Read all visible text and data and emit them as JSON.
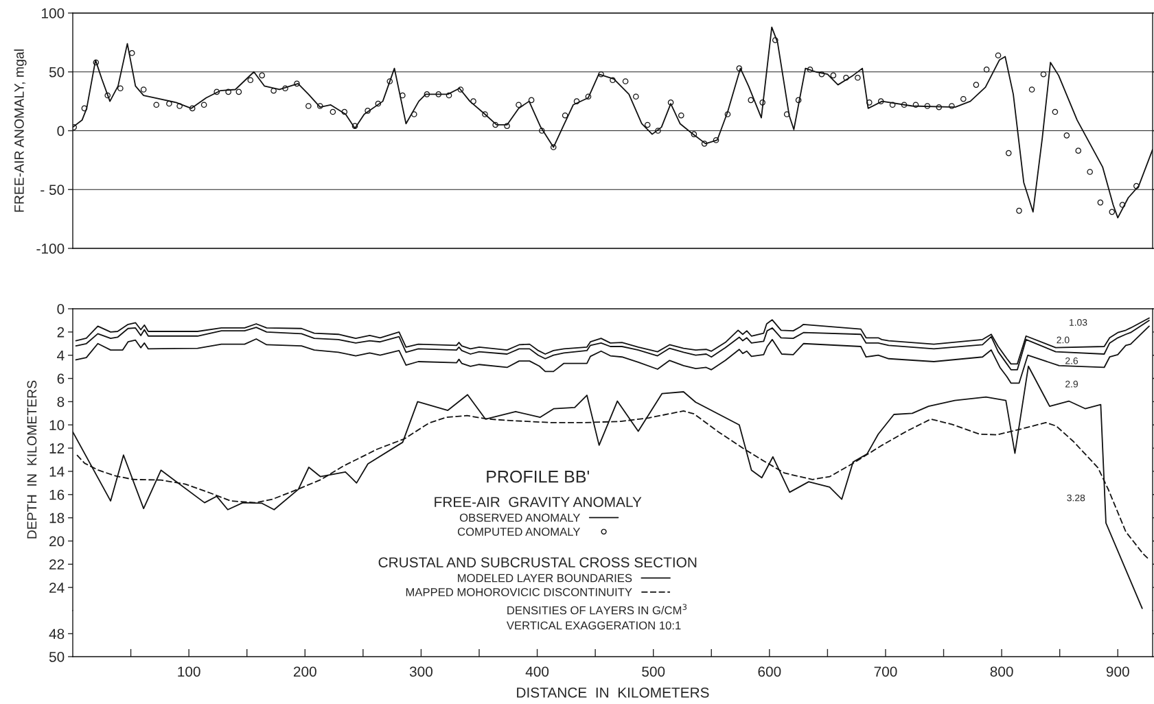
{
  "chart_data": [
    {
      "type": "line",
      "ylabel": "FREE-AIR ANOMALY, mgal",
      "xlim": [
        0,
        930
      ],
      "ylim": [
        -100,
        100
      ],
      "yticks": [
        {
          "value": -100,
          "label": "-100"
        },
        {
          "value": -50,
          "label": "- 50"
        },
        0,
        50,
        100
      ],
      "grid": "y",
      "tick_labels": "y",
      "legend": "bottom",
      "legend_title": "FREE-AIR  GRAVITY ANOMALY",
      "series": [
        {
          "name": "OBSERVED ANOMALY",
          "color": "#111111",
          "x": [
            0,
            8,
            12,
            19.6,
            25,
            32,
            39,
            47,
            54,
            61,
            70,
            89,
            102,
            115,
            127,
            140,
            156,
            165,
            178,
            194,
            203,
            213,
            222,
            235,
            243,
            251,
            267,
            277,
            287,
            298,
            304,
            323,
            333,
            342,
            355,
            365,
            374,
            384,
            393,
            403,
            414,
            422,
            431,
            444,
            453,
            466,
            479,
            490,
            499,
            507,
            515,
            523,
            533,
            545,
            555,
            564,
            575,
            582,
            593,
            602,
            607,
            617,
            621,
            631,
            640,
            650,
            659,
            672,
            680,
            685,
            697,
            723,
            760,
            773,
            786,
            798,
            803,
            810,
            819,
            827,
            835,
            842,
            849,
            865,
            887,
            896,
            900,
            909,
            918,
            930
          ],
          "values": [
            3,
            9,
            19,
            60,
            44,
            25,
            38,
            74,
            38,
            30,
            28,
            24,
            19,
            28,
            34,
            35,
            50,
            38,
            35,
            40,
            31,
            20,
            22,
            14,
            2,
            14,
            25,
            53,
            6,
            25,
            31,
            31,
            36,
            25,
            14,
            5,
            5,
            19,
            25,
            3,
            -14,
            3,
            22,
            28,
            48,
            44,
            31,
            6,
            -3,
            3,
            23,
            6,
            -2,
            -11,
            -8,
            16,
            53,
            38,
            11,
            88,
            75,
            13,
            1,
            53,
            50,
            48,
            39,
            47,
            53,
            19,
            25,
            21,
            20,
            25,
            37,
            60,
            63,
            31,
            -44,
            -69,
            -6,
            58,
            47,
            9,
            -31,
            -63,
            -74,
            -57,
            -47,
            -16
          ]
        },
        {
          "name": "COMPUTED ANOMALY",
          "type": "scatter",
          "marker": "circle",
          "color": "#111111",
          "x": [
            1,
            10,
            20,
            30,
            41,
            51,
            61,
            72,
            83,
            92,
            103,
            113,
            124,
            134,
            143,
            153,
            163,
            173,
            183,
            193,
            203,
            213,
            224,
            234,
            243,
            254,
            263,
            273,
            284,
            294,
            305,
            315,
            324,
            334,
            345,
            355,
            364,
            374,
            384,
            395,
            404,
            414,
            424,
            434,
            444,
            455,
            465,
            476,
            485,
            495,
            504,
            515,
            524,
            535,
            544,
            554,
            564,
            574,
            584,
            594,
            605,
            615,
            625,
            635,
            645,
            655,
            666,
            676,
            686,
            696,
            706,
            716,
            726,
            736,
            746,
            757,
            767,
            778,
            787,
            797,
            806,
            815,
            826,
            836,
            846,
            856,
            866,
            876,
            885,
            895,
            904,
            916
          ],
          "values": [
            3,
            19,
            58,
            30,
            36,
            66,
            35,
            22,
            23,
            21,
            19,
            22,
            33,
            33,
            33,
            43,
            47,
            34,
            36,
            40,
            21,
            21,
            16,
            16,
            4,
            17,
            23,
            42,
            30,
            14,
            31,
            31,
            30,
            35,
            25,
            14,
            5,
            4,
            22,
            26,
            0,
            -14,
            13,
            25,
            29,
            48,
            43,
            42,
            29,
            5,
            0,
            24,
            13,
            -3,
            -11,
            -8,
            14,
            53,
            26,
            24,
            77,
            14,
            26,
            52,
            48,
            47,
            45,
            45,
            24,
            25,
            22,
            22,
            22,
            21,
            20,
            21,
            27,
            39,
            52,
            64,
            -19,
            -68,
            35,
            48,
            16,
            -4,
            -17,
            -35,
            -61,
            -69,
            -63,
            -47
          ]
        }
      ]
    },
    {
      "type": "line",
      "ylabel": "DEPTH  IN  KILOMETERS",
      "xlim": [
        0,
        930
      ],
      "ylim": [
        26,
        0
      ],
      "yticks": [
        0,
        2,
        4,
        6,
        8,
        10,
        12,
        14,
        16,
        18,
        20,
        22,
        24
      ],
      "grid": false,
      "tick_labels": "y",
      "legend": "center",
      "legend_title": "CRUSTAL AND SUBCRUSTAL CROSS SECTION",
      "annotations": [
        "PROFILE BB'",
        "1.03",
        "2.0",
        "2.6",
        "2.9",
        "3.28",
        "DENSITIES OF LAYERS IN G/CM$^{3}$",
        "VERTICAL EXAGGERATION 10:1"
      ],
      "series": [
        {
          "name": "MODELED LAYER BOUNDARIES",
          "line_style": "solid",
          "color": "#111111",
          "x": [
            2.7,
            11.7,
            21.6,
            32.6,
            38.6,
            47.6,
            54,
            58.6,
            61.7,
            65,
            107.5,
            128,
            148,
            158,
            167,
            197,
            208,
            228.7,
            243.7,
            255.7,
            264.7,
            281,
            287,
            297.6,
            330.5,
            332.6,
            335,
            342.5,
            350,
            374,
            384.4,
            393.4,
            400.9,
            406.9,
            414,
            423,
            442.8,
            445.8,
            455,
            463,
            473,
            487,
            503.6,
            514,
            526,
            536.5,
            545.5,
            550,
            562,
            573,
            577,
            580.5,
            584.5,
            595,
            597.6,
            602.4,
            610,
            620.5,
            626.6,
            629.3,
            678.7,
            683.2,
            693.7,
            696.7,
            702.7,
            741.6,
            783.5,
            791,
            797,
            804.5,
            808,
            813.5,
            821,
            846.5,
            888.3,
            893,
            900,
            906.9,
            911,
            927
          ],
          "values": [
            2.75,
            2.54,
            1.5,
            2.0,
            1.95,
            1.35,
            1.2,
            1.8,
            1.4,
            1.95,
            1.95,
            1.65,
            1.65,
            1.3,
            1.65,
            1.7,
            2.1,
            2.2,
            2.55,
            2.3,
            2.5,
            2.0,
            3.3,
            3.05,
            3.15,
            2.9,
            3.2,
            3.45,
            3.3,
            3.55,
            3.1,
            3.05,
            3.6,
            3.9,
            3.6,
            3.45,
            3.3,
            2.85,
            2.55,
            2.95,
            2.9,
            3.3,
            3.7,
            3.1,
            3.4,
            3.55,
            3.5,
            3.65,
            2.9,
            1.85,
            2.2,
            1.9,
            2.35,
            2.1,
            1.3,
            0.95,
            1.85,
            1.9,
            1.55,
            1.35,
            1.75,
            2.5,
            2.5,
            2.65,
            2.75,
            3.05,
            2.65,
            2.2,
            3.25,
            4.3,
            4.75,
            4.75,
            2.35,
            3.35,
            3.25,
            2.5,
            2.05,
            1.85,
            1.65,
            0.8
          ]
        },
        {
          "line_style": "solid",
          "color": "#111111",
          "x": [
            2.7,
            11.7,
            21.6,
            32.6,
            38.6,
            47.6,
            54,
            58.6,
            61.7,
            65,
            107.5,
            128,
            148,
            158,
            167,
            197,
            208,
            228.7,
            243.7,
            255.7,
            264.7,
            281,
            287,
            297.6,
            330.5,
            332.6,
            335,
            342.5,
            350,
            374,
            384.4,
            393.4,
            400.9,
            406.9,
            414,
            423,
            442.8,
            445.8,
            455,
            463,
            473,
            487,
            503.6,
            514,
            526,
            536.5,
            545.5,
            550,
            562,
            574,
            577,
            580.5,
            584.5,
            595,
            598,
            602.4,
            610,
            620.5,
            629.3,
            678.7,
            683.2,
            693.7,
            702.7,
            741.6,
            783.5,
            791,
            797,
            804.5,
            808,
            813.5,
            821,
            846.5,
            888.3,
            893,
            900,
            906.9,
            911,
            927
          ],
          "values": [
            3.2,
            3.0,
            2.15,
            2.55,
            2.45,
            1.7,
            1.65,
            2.3,
            1.8,
            2.35,
            2.35,
            1.9,
            1.9,
            1.6,
            2.0,
            2.15,
            2.55,
            2.65,
            2.95,
            2.75,
            2.85,
            2.4,
            3.75,
            3.45,
            3.55,
            3.3,
            3.6,
            3.9,
            3.7,
            3.9,
            3.45,
            3.45,
            4.0,
            4.3,
            4.0,
            3.8,
            3.6,
            3.15,
            2.95,
            3.25,
            3.25,
            3.55,
            4.05,
            3.4,
            3.75,
            4.0,
            3.9,
            4.15,
            3.35,
            2.45,
            2.75,
            2.5,
            2.95,
            2.8,
            1.9,
            1.65,
            2.5,
            2.55,
            2.05,
            2.2,
            2.95,
            2.95,
            3.15,
            3.45,
            3.1,
            2.4,
            3.7,
            4.75,
            5.25,
            5.25,
            2.65,
            3.7,
            3.9,
            2.95,
            2.5,
            2.2,
            2.05,
            1.0
          ]
        },
        {
          "line_style": "solid",
          "color": "#111111",
          "x": [
            2.7,
            11.7,
            21.6,
            32.6,
            43,
            47.6,
            54,
            58.6,
            61.7,
            65,
            107.5,
            128,
            148,
            158,
            167,
            197,
            208,
            228.7,
            243.7,
            255.7,
            264.7,
            281,
            287,
            297.6,
            330.5,
            332.6,
            335,
            342.5,
            350,
            374,
            384.4,
            393.4,
            402,
            406.9,
            414,
            423,
            442.8,
            445.8,
            455,
            463,
            473,
            487,
            503.6,
            514,
            526,
            536.5,
            545.5,
            550,
            562,
            574,
            577,
            580.5,
            584.5,
            595,
            598,
            602.4,
            610.6,
            620.5,
            629.3,
            678.7,
            683.2,
            693.7,
            702.7,
            741.6,
            783.5,
            791,
            798.5,
            804.5,
            808,
            815,
            822.5,
            849.5,
            888.3,
            893,
            900,
            906.9,
            911,
            927
          ],
          "values": [
            4.4,
            4.2,
            3.0,
            3.55,
            3.55,
            2.85,
            2.7,
            3.35,
            2.95,
            3.45,
            3.4,
            3.05,
            3.05,
            2.6,
            3.1,
            3.2,
            3.55,
            3.75,
            4.05,
            3.8,
            4.0,
            3.6,
            4.85,
            4.55,
            4.65,
            4.35,
            4.7,
            4.95,
            4.8,
            5.05,
            4.5,
            4.5,
            4.95,
            5.4,
            5.4,
            4.7,
            4.7,
            4.1,
            3.65,
            4.05,
            4.15,
            4.6,
            5.2,
            4.45,
            4.9,
            5.15,
            5.05,
            5.25,
            4.45,
            3.5,
            3.85,
            3.65,
            4.1,
            3.95,
            3.25,
            2.65,
            3.9,
            3.95,
            3.0,
            3.25,
            4.15,
            4.0,
            4.3,
            4.55,
            4.15,
            3.55,
            5.05,
            5.85,
            6.4,
            6.4,
            4.0,
            4.9,
            5.05,
            4.15,
            3.95,
            3.15,
            3.05,
            1.5
          ]
        },
        {
          "line_style": "solid",
          "color": "#111111",
          "x": [
            0,
            32.6,
            43.7,
            61,
            76,
            113.5,
            124,
            133.5,
            146.5,
            162.9,
            173.4,
            194.3,
            203.3,
            213.2,
            234.8,
            244.4,
            254.2,
            284.1,
            297,
            323,
            340,
            355.4,
            381.4,
            402.4,
            414.4,
            432.3,
            442.8,
            453.3,
            469,
            487,
            507.5,
            526,
            536.5,
            574,
            584.5,
            593.4,
            603,
            617.4,
            633.8,
            651.8,
            662.3,
            672,
            684.1,
            693.7,
            707.2,
            723,
            737,
            759.6,
            786.5,
            803.6,
            811.4,
            823,
            841.3,
            857.8,
            871.9,
            885.3,
            889.8,
            921
          ],
          "values": [
            10.6,
            16.55,
            12.6,
            17.2,
            13.9,
            16.7,
            16.15,
            17.3,
            16.7,
            16.75,
            17.3,
            15.55,
            13.65,
            14.45,
            14.05,
            15.0,
            13.35,
            11.5,
            8.0,
            8.75,
            7.4,
            9.5,
            8.85,
            9.35,
            8.6,
            8.5,
            7.45,
            11.75,
            7.95,
            10.55,
            7.3,
            7.15,
            8.05,
            10.0,
            13.9,
            14.55,
            12.75,
            15.8,
            14.9,
            15.35,
            16.4,
            13.2,
            12.5,
            10.8,
            9.1,
            9.0,
            8.4,
            7.9,
            7.6,
            7.9,
            12.45,
            4.95,
            8.4,
            7.95,
            8.6,
            8.25,
            18.45,
            25.8
          ]
        },
        {
          "name": "MAPPED MOHOROVICIC DISCONTINUITY",
          "line_style": "dashed",
          "color": "#111111",
          "x": [
            3.6,
            10.2,
            22,
            37,
            52,
            76,
            97,
            118,
            136,
            157,
            172,
            190,
            214,
            232,
            262,
            285.6,
            306.6,
            321.6,
            339.5,
            357.5,
            381.4,
            411.4,
            441.3,
            472,
            496,
            526,
            535,
            556,
            577,
            595,
            613,
            637,
            652,
            673,
            697,
            718,
            739,
            757,
            781,
            796,
            817,
            838,
            847,
            862,
            883,
            892,
            906.9,
            921.8,
            927
          ],
          "values": [
            12.6,
            13.3,
            13.9,
            14.4,
            14.7,
            14.75,
            15.1,
            15.85,
            16.55,
            16.7,
            16.4,
            15.7,
            14.7,
            13.6,
            12.1,
            11.2,
            9.85,
            9.35,
            9.2,
            9.5,
            9.65,
            9.8,
            9.8,
            9.7,
            9.4,
            8.8,
            9.05,
            10.6,
            12.0,
            13.1,
            14.15,
            14.7,
            14.45,
            13.25,
            11.75,
            10.55,
            9.5,
            9.95,
            10.8,
            10.85,
            10.35,
            9.8,
            10.1,
            11.45,
            13.7,
            15.6,
            19.2,
            21.1,
            21.6
          ]
        }
      ]
    },
    {
      "type": "line",
      "xlabel": "DISTANCE  IN  KILOMETERS",
      "xlim": [
        0,
        930
      ],
      "xticks": [
        {
          "value": 50,
          "label": null
        },
        100,
        {
          "value": 150,
          "label": null
        },
        200,
        {
          "value": 250,
          "label": null
        },
        300,
        {
          "value": 350,
          "label": null
        },
        400,
        {
          "value": 450,
          "label": null
        },
        500,
        {
          "value": 550,
          "label": null
        },
        600,
        {
          "value": 650,
          "label": null
        },
        700,
        {
          "value": 750,
          "label": null
        },
        800,
        {
          "value": 850,
          "label": null
        },
        900
      ],
      "ylim": [
        50,
        46
      ],
      "yticks": [
        48,
        50
      ],
      "grid": false
    }
  ]
}
